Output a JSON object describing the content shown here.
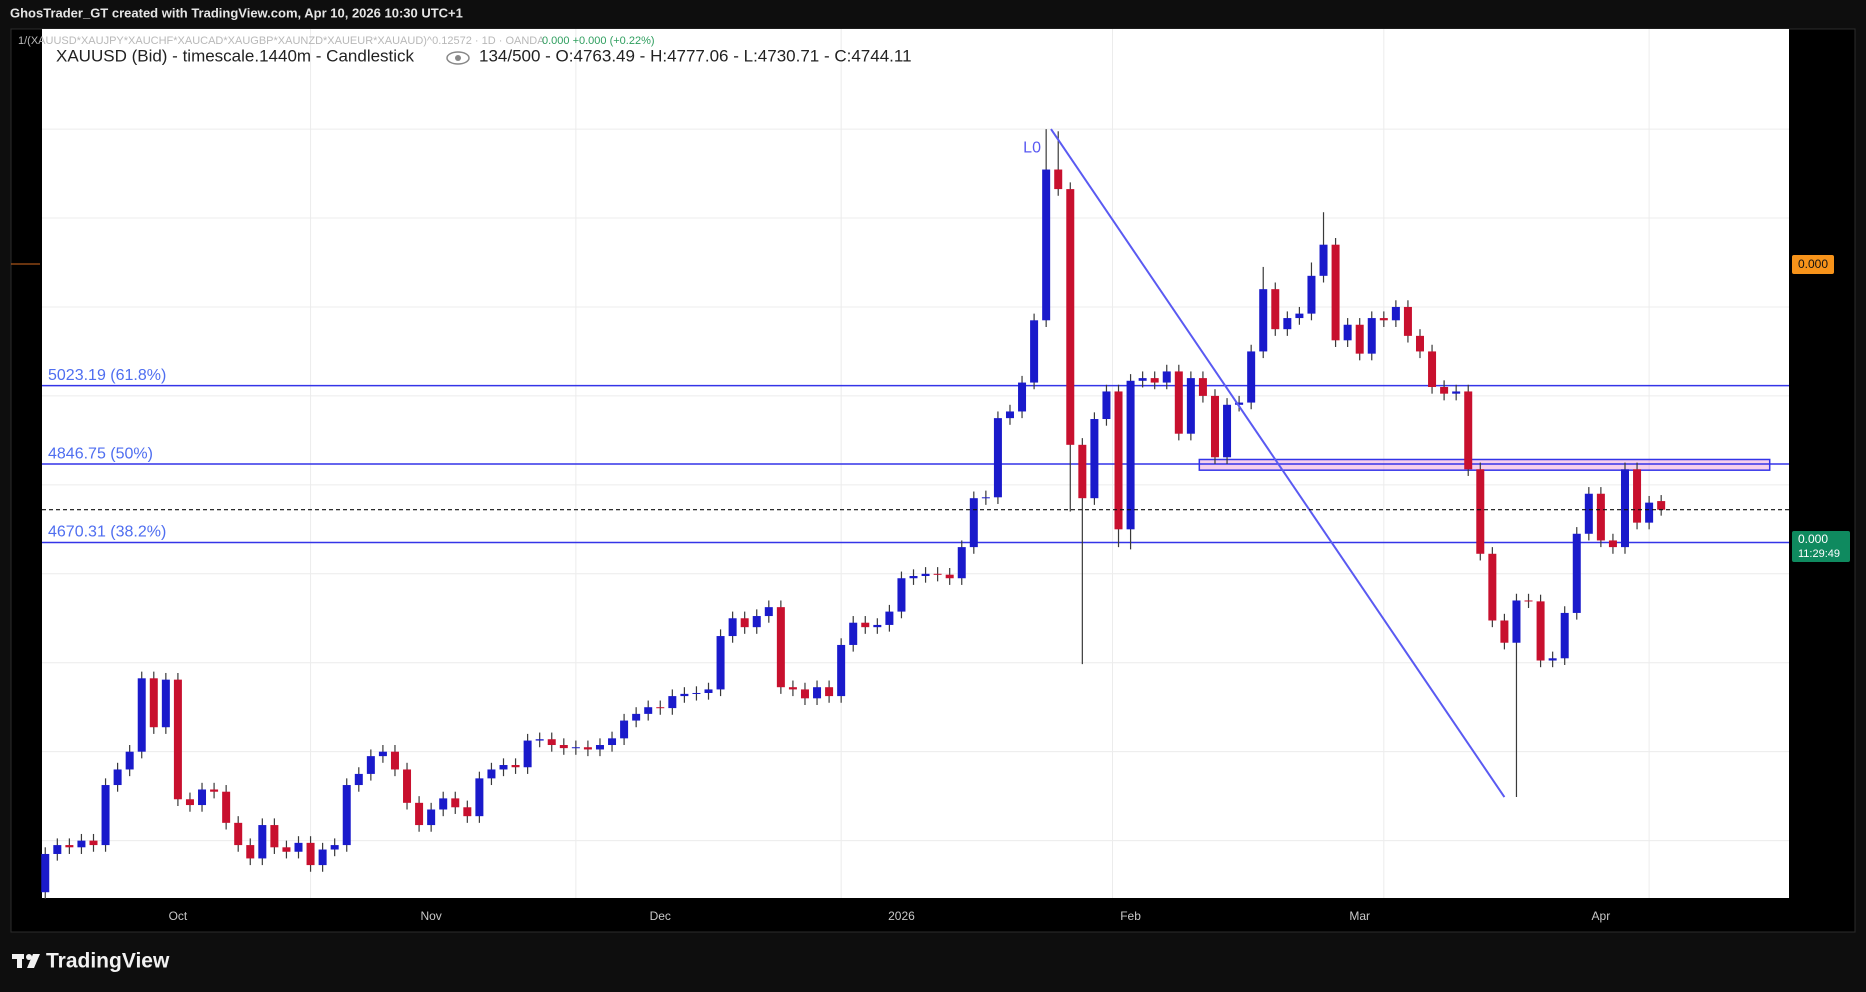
{
  "header": {
    "credit": "GhosTrader_GT created with TradingView.com, Apr 10, 2026 10:30 UTC+1",
    "formula": "1/(XAUUSD*XAUJPY*XAUCHF*XAUCAD*XAUGBP*XAUNZD*XAUEUR*XAUAUD)^0.12572 · 1D · OANDA",
    "formula_values": "0.000 +0.000 (+0.22%)"
  },
  "footer": {
    "brand": "TradingView"
  },
  "price_axis": {
    "orange_label": "0.000",
    "green_label": "0.000",
    "countdown": "11:29:49"
  },
  "chart_data": {
    "type": "candlestick",
    "title": "XAUUSD (Bid) - timescale.1440m - Candlestick",
    "ohlc_legend": "134/500 - O:4763.49 - H:4777.06 - L:4730.71 - C:4744.11",
    "up_color": "#1a1acb",
    "down_color": "#c8102e",
    "wick_color": "#3a3a3a",
    "xlim": [
      -0.27,
      144.6
    ],
    "ylim": [
      3871,
      5825
    ],
    "ygrid": [
      4000,
      4200,
      4400,
      4600,
      4800,
      5000,
      5200,
      5400,
      5600
    ],
    "xgrid": [
      22,
      44,
      66,
      88.5,
      111,
      133
    ],
    "categories": [
      null,
      null,
      null,
      null,
      null,
      null,
      null,
      null,
      null,
      null,
      null,
      "Oct",
      null,
      null,
      null,
      null,
      null,
      null,
      null,
      null,
      null,
      null,
      null,
      null,
      null,
      null,
      null,
      null,
      null,
      null,
      null,
      null,
      "Nov",
      null,
      null,
      null,
      null,
      null,
      null,
      null,
      null,
      null,
      null,
      null,
      null,
      null,
      null,
      null,
      null,
      null,
      null,
      "Dec",
      null,
      null,
      null,
      null,
      null,
      null,
      null,
      null,
      null,
      null,
      null,
      null,
      null,
      null,
      null,
      null,
      null,
      null,
      null,
      "2026",
      null,
      null,
      null,
      null,
      null,
      null,
      null,
      null,
      null,
      null,
      null,
      null,
      null,
      null,
      null,
      null,
      null,
      null,
      "Feb",
      null,
      null,
      null,
      null,
      null,
      null,
      null,
      null,
      null,
      null,
      null,
      null,
      null,
      null,
      null,
      null,
      null,
      null,
      "Mar",
      null,
      null,
      null,
      null,
      null,
      null,
      null,
      null,
      null,
      null,
      null,
      null,
      null,
      null,
      null,
      null,
      null,
      null,
      null,
      "Apr",
      null,
      null,
      null,
      null,
      null
    ],
    "open": [
      3884,
      3970,
      3990,
      3985,
      4000,
      3990,
      4125,
      4160,
      4200,
      4365,
      4255,
      4362,
      4093,
      4080,
      4115,
      4110,
      4040,
      3990,
      3960,
      4035,
      3985,
      3975,
      3995,
      3945,
      3980,
      3990,
      4125,
      4150,
      4190,
      4200,
      4160,
      4085,
      4035,
      4070,
      4095,
      4075,
      4055,
      4140,
      4160,
      4170,
      4165,
      4225,
      4228,
      4215,
      4208,
      4210,
      4205,
      4215,
      4230,
      4270,
      4285,
      4300,
      4298,
      4325,
      4330,
      4332,
      4340,
      4460,
      4500,
      4480,
      4505,
      4525,
      4345,
      4340,
      4320,
      4345,
      4325,
      4440,
      4490,
      4480,
      4485,
      4515,
      4590,
      4595,
      4600,
      4598,
      4590,
      4660,
      4770,
      4772,
      4950,
      4965,
      5030,
      5170,
      5509,
      5465,
      4890,
      4770,
      4948,
      5010,
      4700,
      5034,
      5040,
      5030,
      5055,
      4915,
      5040,
      5000,
      4862,
      4980,
      4985,
      5100,
      5240,
      5150,
      5175,
      5185,
      5270,
      5340,
      5125,
      5160,
      5095,
      5175,
      5170,
      5200,
      5135,
      5100,
      5020,
      5005,
      5010,
      4835,
      4645,
      4495,
      4445,
      4540,
      4538,
      4405,
      4410,
      4512,
      4690,
      4780,
      4675,
      4660,
      4835,
      4715,
      4763.49
    ],
    "high": [
      3985,
      4005,
      4005,
      4015,
      4015,
      4140,
      4175,
      4215,
      4380,
      4380,
      4377,
      4377,
      4108,
      4130,
      4130,
      4125,
      4055,
      4005,
      4050,
      4050,
      4000,
      4010,
      4010,
      3995,
      4005,
      4140,
      4165,
      4205,
      4215,
      4215,
      4175,
      4100,
      4085,
      4110,
      4110,
      4090,
      4155,
      4175,
      4185,
      4185,
      4240,
      4243,
      4243,
      4230,
      4225,
      4225,
      4230,
      4245,
      4285,
      4300,
      4315,
      4315,
      4340,
      4345,
      4347,
      4355,
      4475,
      4515,
      4515,
      4520,
      4540,
      4540,
      4360,
      4355,
      4360,
      4360,
      4455,
      4505,
      4505,
      4500,
      4530,
      4605,
      4610,
      4615,
      4615,
      4613,
      4675,
      4785,
      4787,
      4965,
      4980,
      5045,
      5185,
      5600,
      5595,
      5480,
      4905,
      4963,
      5025,
      5025,
      5049,
      5055,
      5055,
      5070,
      5070,
      5055,
      5055,
      5015,
      4995,
      5000,
      5115,
      5290,
      5255,
      5190,
      5200,
      5300,
      5413,
      5355,
      5175,
      5175,
      5190,
      5190,
      5215,
      5215,
      5150,
      5115,
      5035,
      5025,
      5025,
      4850,
      4660,
      4510,
      4555,
      4555,
      4553,
      4425,
      4527,
      4705,
      4795,
      4795,
      4690,
      4850,
      4850,
      4775,
      4777.06
    ],
    "low": [
      3869,
      3955,
      3970,
      3970,
      3975,
      3975,
      4110,
      4145,
      4185,
      4240,
      4240,
      4078,
      4065,
      4065,
      4095,
      4025,
      3975,
      3945,
      3945,
      3970,
      3960,
      3960,
      3930,
      3930,
      3965,
      3975,
      4110,
      4135,
      4175,
      4145,
      4070,
      4020,
      4020,
      4055,
      4060,
      4040,
      4040,
      4125,
      4145,
      4150,
      4150,
      4210,
      4200,
      4193,
      4193,
      4190,
      4190,
      4200,
      4215,
      4255,
      4270,
      4283,
      4283,
      4310,
      4315,
      4317,
      4325,
      4445,
      4465,
      4465,
      4490,
      4330,
      4325,
      4305,
      4305,
      4310,
      4310,
      4425,
      4465,
      4465,
      4470,
      4500,
      4575,
      4580,
      4583,
      4575,
      4575,
      4645,
      4755,
      4757,
      4935,
      4950,
      5015,
      5155,
      5450,
      4740,
      4397,
      4755,
      4933,
      4660,
      4655,
      5019,
      5015,
      5015,
      4900,
      4900,
      4985,
      4847,
      4847,
      4965,
      4970,
      5085,
      5135,
      5135,
      5160,
      5170,
      5255,
      5110,
      5110,
      5080,
      5080,
      5155,
      5155,
      5120,
      5085,
      5005,
      4990,
      4990,
      4820,
      4630,
      4480,
      4430,
      4098,
      4523,
      4390,
      4390,
      4395,
      4497,
      4675,
      4660,
      4645,
      4645,
      4700,
      4700,
      4730.71
    ],
    "close": [
      3970,
      3990,
      3985,
      4000,
      3990,
      4125,
      4160,
      4200,
      4365,
      4255,
      4362,
      4093,
      4080,
      4115,
      4110,
      4040,
      3990,
      3960,
      4035,
      3985,
      3975,
      3995,
      3945,
      3980,
      3990,
      4125,
      4150,
      4190,
      4200,
      4160,
      4085,
      4035,
      4070,
      4095,
      4075,
      4055,
      4140,
      4160,
      4170,
      4165,
      4225,
      4228,
      4215,
      4208,
      4210,
      4205,
      4215,
      4230,
      4270,
      4285,
      4300,
      4298,
      4325,
      4330,
      4332,
      4340,
      4460,
      4500,
      4480,
      4505,
      4525,
      4345,
      4340,
      4320,
      4345,
      4325,
      4440,
      4490,
      4480,
      4485,
      4515,
      4590,
      4595,
      4600,
      4598,
      4590,
      4660,
      4770,
      4772,
      4950,
      4965,
      5030,
      5170,
      5509,
      5465,
      4890,
      4770,
      4948,
      5010,
      4700,
      5034,
      5040,
      5030,
      5055,
      4915,
      5040,
      5000,
      4862,
      4980,
      4985,
      5100,
      5240,
      5150,
      5175,
      5185,
      5270,
      5340,
      5125,
      5160,
      5095,
      5175,
      5170,
      5200,
      5135,
      5100,
      5020,
      5005,
      5010,
      4835,
      4645,
      4495,
      4445,
      4540,
      4538,
      4405,
      4410,
      4512,
      4690,
      4780,
      4675,
      4660,
      4835,
      4715,
      4760,
      4744.11
    ],
    "fib_levels": [
      {
        "value": 5023.19,
        "label": "5023.19 (61.8%)"
      },
      {
        "value": 4846.75,
        "label": "4846.75 (50%)"
      },
      {
        "value": 4670.31,
        "label": "4670.31 (38.2%)"
      }
    ],
    "zone": {
      "x": [
        95.7,
        143
      ],
      "y": [
        4833,
        4857
      ]
    },
    "trendline": {
      "label": "L0",
      "x": [
        83.4,
        121
      ],
      "y": [
        5600,
        4098
      ]
    }
  }
}
